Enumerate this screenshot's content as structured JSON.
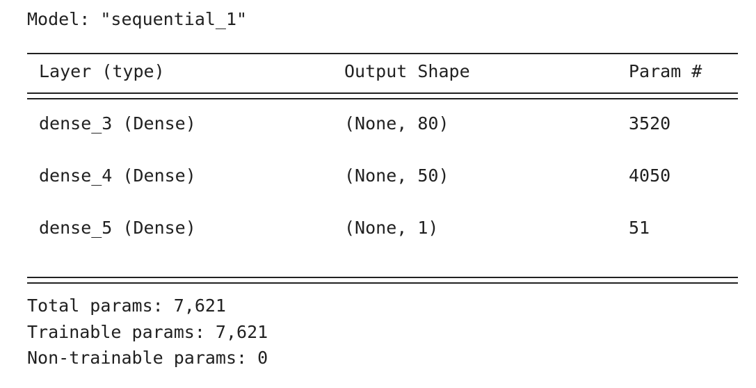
{
  "model_title": "Model: \"sequential_1\"",
  "headers": {
    "layer": "Layer (type)",
    "shape": "Output Shape",
    "param": "Param #"
  },
  "rows": [
    {
      "layer": "dense_3 (Dense)",
      "shape": "(None, 80)",
      "param": "3520"
    },
    {
      "layer": "dense_4 (Dense)",
      "shape": "(None, 50)",
      "param": "4050"
    },
    {
      "layer": "dense_5 (Dense)",
      "shape": "(None, 1)",
      "param": "51"
    }
  ],
  "summary": {
    "total": "Total params: 7,621",
    "trainable": "Trainable params: 7,621",
    "non_trainable": "Non-trainable params: 0"
  }
}
